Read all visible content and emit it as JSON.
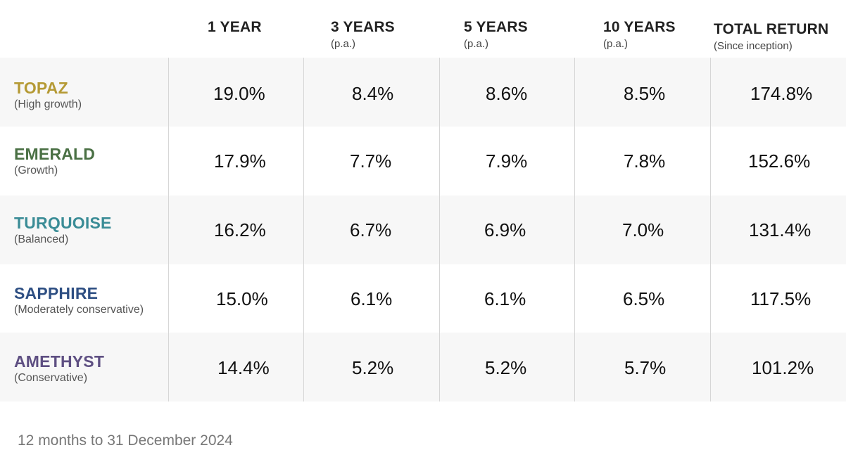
{
  "chart_data": {
    "type": "table",
    "columns": [
      {
        "title": "1 YEAR",
        "sub": ""
      },
      {
        "title": "3 YEARS",
        "sub": "(p.a.)"
      },
      {
        "title": "5 YEARS",
        "sub": "(p.a.)"
      },
      {
        "title": "10 YEARS",
        "sub": "(p.a.)"
      },
      {
        "title": "TOTAL RETURN",
        "sub": "(Since inception)"
      }
    ],
    "rows": [
      {
        "name": "TOPAZ",
        "desc": "(High growth)",
        "color": "#b59a35",
        "values": [
          "19.0%",
          "8.4%",
          "8.6%",
          "8.5%",
          "174.8%"
        ]
      },
      {
        "name": "EMERALD",
        "desc": "(Growth)",
        "color": "#4a7044",
        "values": [
          "17.9%",
          "7.7%",
          "7.9%",
          "7.8%",
          "152.6%"
        ]
      },
      {
        "name": "TURQUOISE",
        "desc": "(Balanced)",
        "color": "#3a8c96",
        "values": [
          "16.2%",
          "6.7%",
          "6.9%",
          "7.0%",
          "131.4%"
        ]
      },
      {
        "name": "SAPPHIRE",
        "desc": "(Moderately conservative)",
        "color": "#2e4f83",
        "values": [
          "15.0%",
          "6.1%",
          "6.1%",
          "6.5%",
          "117.5%"
        ]
      },
      {
        "name": "AMETHYST",
        "desc": "(Conservative)",
        "color": "#5e4f82",
        "values": [
          "14.4%",
          "5.2%",
          "5.2%",
          "5.7%",
          "101.2%"
        ]
      }
    ]
  },
  "footnote": "12 months to 31 December 2024"
}
